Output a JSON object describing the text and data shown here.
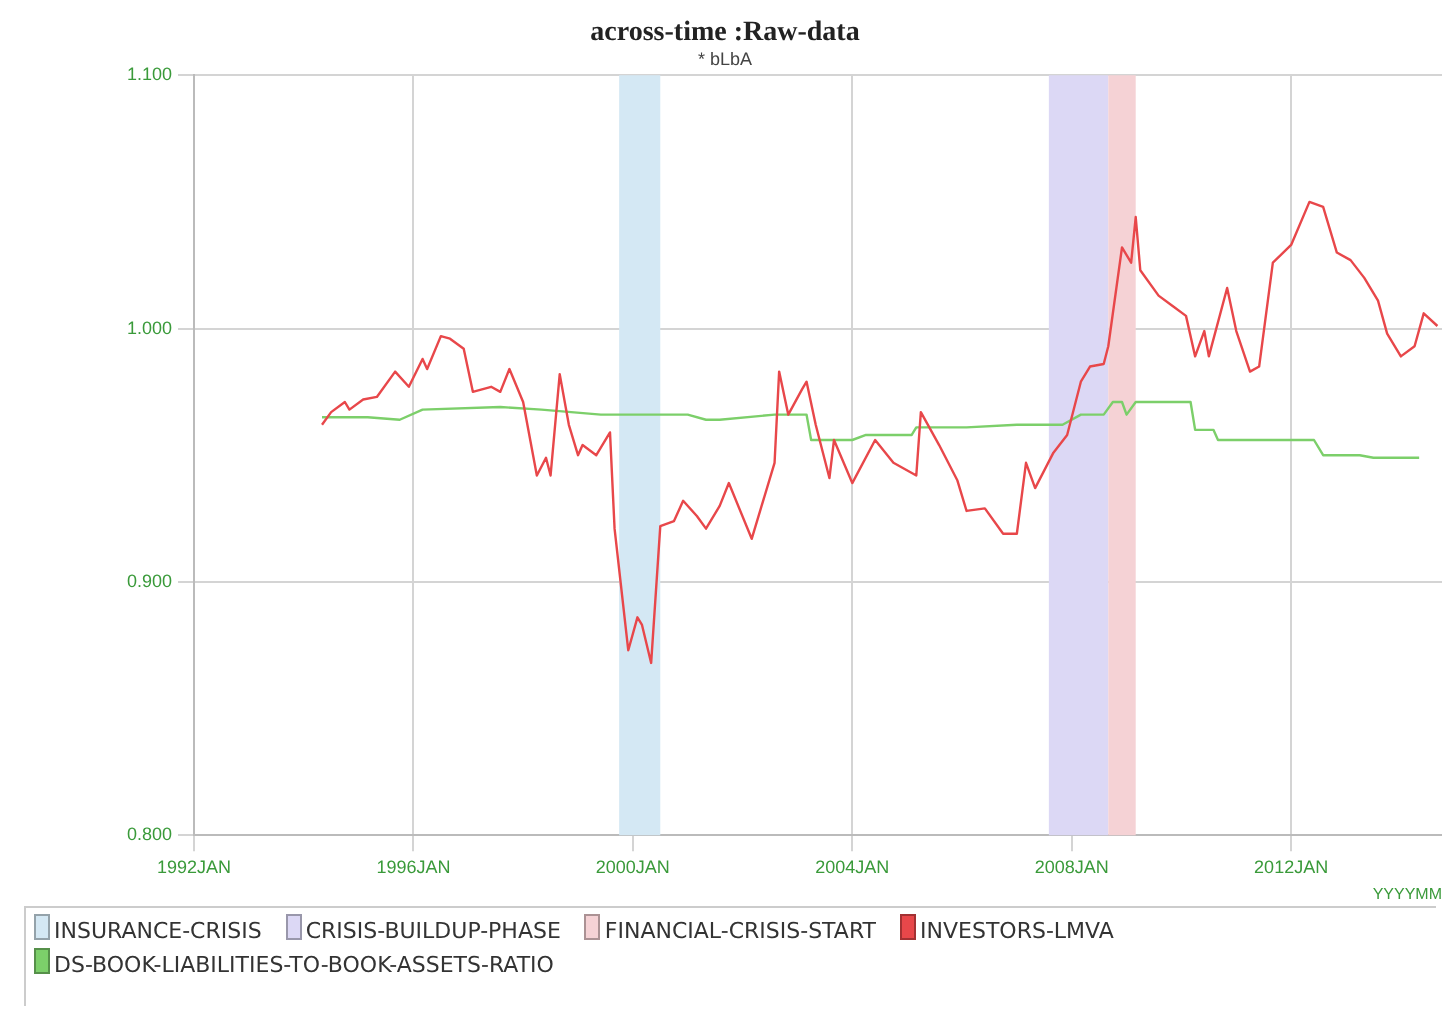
{
  "chart_data": {
    "type": "line",
    "title": "across-time :Raw-data",
    "subtitle": "* bLbA",
    "xlabel": "YYYYMM",
    "xlim": [
      "1992-01",
      "2014-10"
    ],
    "xticks": [
      {
        "value": "1992-01",
        "label": "1992JAN"
      },
      {
        "value": "1996-01",
        "label": "1996JAN"
      },
      {
        "value": "2000-01",
        "label": "2000JAN"
      },
      {
        "value": "2004-01",
        "label": "2004JAN"
      },
      {
        "value": "2008-01",
        "label": "2008JAN"
      },
      {
        "value": "2012-01",
        "label": "2012JAN"
      }
    ],
    "ylim": [
      0.8,
      1.1
    ],
    "yticks": [
      {
        "value": 0.8,
        "label": "0.800"
      },
      {
        "value": 0.9,
        "label": "0.900"
      },
      {
        "value": 1.0,
        "label": "1.000"
      },
      {
        "value": 1.1,
        "label": "1.100"
      }
    ],
    "grid": true,
    "legend": "bottom",
    "marker": "none",
    "line_style": "solid",
    "bands": [
      {
        "axis": "x",
        "from": "1999-10",
        "to": "2000-07",
        "label": "INSURANCE-CRISIS",
        "color": "#d4e8f4"
      },
      {
        "axis": "x",
        "from": "2007-08",
        "to": "2008-09",
        "label": "CRISIS-BUILDUP-PHASE",
        "color": "#dcd8f5"
      },
      {
        "axis": "x",
        "from": "2008-09",
        "to": "2009-03",
        "label": "FINANCIAL-CRISIS-START",
        "color": "#f5d2d5"
      }
    ],
    "series": [
      {
        "name": "INVESTORS-LMVA",
        "color": "#e8474a",
        "x": [
          "1994-05",
          "1994-07",
          "1994-10",
          "1994-11",
          "1995-02",
          "1995-05",
          "1995-09",
          "1995-12",
          "1996-03",
          "1996-04",
          "1996-07",
          "1996-09",
          "1996-12",
          "1997-02",
          "1997-06",
          "1997-08",
          "1997-10",
          "1998-01",
          "1998-04",
          "1998-06",
          "1998-07",
          "1998-09",
          "1998-11",
          "1999-01",
          "1999-02",
          "1999-05",
          "1999-08",
          "1999-09",
          "1999-12",
          "2000-02",
          "2000-03",
          "2000-05",
          "2000-07",
          "2000-10",
          "2000-12",
          "2001-03",
          "2001-05",
          "2001-08",
          "2001-10",
          "2002-03",
          "2002-05",
          "2002-08",
          "2002-09",
          "2002-11",
          "2003-02",
          "2003-03",
          "2003-05",
          "2003-08",
          "2003-09",
          "2004-01",
          "2004-06",
          "2004-10",
          "2005-03",
          "2005-04",
          "2005-08",
          "2005-12",
          "2006-02",
          "2006-06",
          "2006-10",
          "2007-01",
          "2007-03",
          "2007-05",
          "2007-09",
          "2007-12",
          "2008-03",
          "2008-05",
          "2008-08",
          "2008-09",
          "2008-12",
          "2009-02",
          "2009-03",
          "2009-04",
          "2009-08",
          "2009-11",
          "2010-02",
          "2010-04",
          "2010-06",
          "2010-07",
          "2010-11",
          "2011-01",
          "2011-04",
          "2011-06",
          "2011-09",
          "2012-01",
          "2012-05",
          "2012-08",
          "2012-11",
          "2013-02",
          "2013-05",
          "2013-08",
          "2013-10",
          "2014-01",
          "2014-04",
          "2014-06",
          "2014-09"
        ],
        "values": [
          0.962,
          0.967,
          0.971,
          0.968,
          0.972,
          0.973,
          0.983,
          0.977,
          0.988,
          0.984,
          0.997,
          0.996,
          0.992,
          0.975,
          0.977,
          0.975,
          0.984,
          0.971,
          0.942,
          0.949,
          0.942,
          0.982,
          0.962,
          0.95,
          0.954,
          0.95,
          0.959,
          0.921,
          0.873,
          0.886,
          0.883,
          0.868,
          0.922,
          0.924,
          0.932,
          0.926,
          0.921,
          0.93,
          0.939,
          0.917,
          0.929,
          0.947,
          0.983,
          0.966,
          0.976,
          0.979,
          0.962,
          0.941,
          0.956,
          0.939,
          0.956,
          0.947,
          0.942,
          0.967,
          0.954,
          0.94,
          0.928,
          0.929,
          0.919,
          0.919,
          0.947,
          0.937,
          0.951,
          0.958,
          0.979,
          0.985,
          0.986,
          0.993,
          1.032,
          1.026,
          1.044,
          1.023,
          1.013,
          1.009,
          1.005,
          0.989,
          0.999,
          0.989,
          1.016,
          0.999,
          0.983,
          0.985,
          1.026,
          1.033,
          1.05,
          1.048,
          1.03,
          1.027,
          1.02,
          1.011,
          0.998,
          0.989,
          0.993,
          1.006,
          1.001
        ]
      },
      {
        "name": "DS-BOOK-LIABILITIES-TO-BOOK-ASSETS-RATIO",
        "color": "#7ccf6a",
        "x": [
          "1994-05",
          "1995-03",
          "1995-10",
          "1996-03",
          "1997-08",
          "1998-05",
          "1999-06",
          "2001-01",
          "2001-05",
          "2001-08",
          "2002-08",
          "2003-03",
          "2003-04",
          "2004-01",
          "2004-04",
          "2005-02",
          "2005-03",
          "2006-02",
          "2007-01",
          "2007-11",
          "2008-03",
          "2008-08",
          "2008-10",
          "2008-12",
          "2009-01",
          "2009-03",
          "2010-03",
          "2010-04",
          "2010-08",
          "2010-09",
          "2012-06",
          "2012-08",
          "2013-04",
          "2013-07",
          "2014-05"
        ],
        "values": [
          0.965,
          0.965,
          0.964,
          0.968,
          0.969,
          0.968,
          0.966,
          0.966,
          0.964,
          0.964,
          0.966,
          0.966,
          0.956,
          0.956,
          0.958,
          0.958,
          0.961,
          0.961,
          0.962,
          0.962,
          0.966,
          0.966,
          0.971,
          0.971,
          0.966,
          0.971,
          0.971,
          0.96,
          0.96,
          0.956,
          0.956,
          0.95,
          0.95,
          0.949,
          0.949
        ]
      }
    ]
  }
}
